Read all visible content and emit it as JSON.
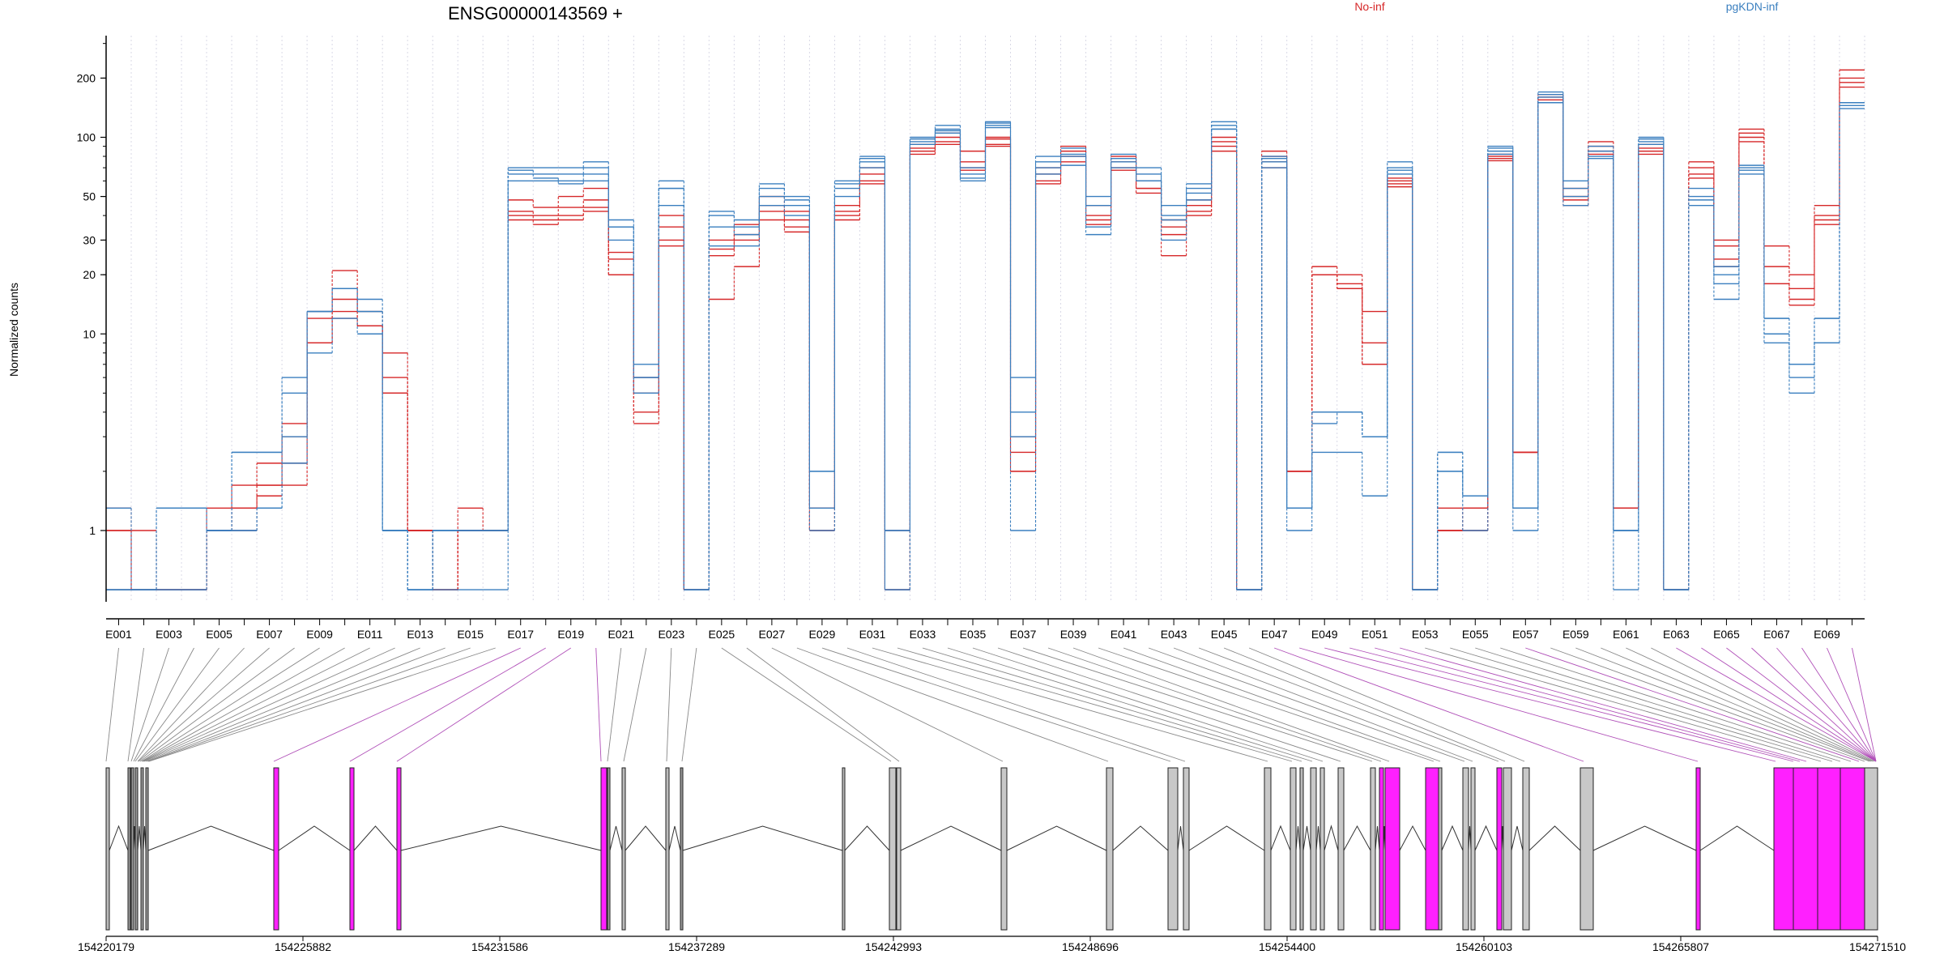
{
  "chart_data": {
    "type": "line",
    "title": "ENSG00000143569 +",
    "ylabel": "Normalized counts",
    "yscale": "log",
    "ylim": [
      0.45,
      300
    ],
    "yticks": [
      1,
      10,
      20,
      30,
      50,
      100,
      200
    ],
    "grid": "vertical",
    "legend": [
      {
        "name": "No-inf",
        "color": "#d62728"
      },
      {
        "name": "pgKDN-inf",
        "color": "#3a7fbf"
      }
    ],
    "exons": [
      "E001",
      "E002",
      "E003",
      "E004",
      "E005",
      "E006",
      "E007",
      "E008",
      "E009",
      "E010",
      "E011",
      "E012",
      "E013",
      "E014",
      "E015",
      "E016",
      "E017",
      "E018",
      "E019",
      "E020",
      "E021",
      "E022",
      "E023",
      "E024",
      "E025",
      "E026",
      "E027",
      "E028",
      "E029",
      "E030",
      "E031",
      "E032",
      "E033",
      "E034",
      "E035",
      "E036",
      "E037",
      "E038",
      "E039",
      "E040",
      "E041",
      "E042",
      "E043",
      "E044",
      "E045",
      "E046",
      "E047",
      "E048",
      "E049",
      "E050",
      "E051",
      "E052",
      "E053",
      "E054",
      "E055",
      "E056",
      "E057",
      "E058",
      "E059",
      "E060",
      "E061",
      "E062",
      "E063",
      "E064",
      "E065",
      "E066",
      "E067",
      "E068",
      "E069",
      "E070"
    ],
    "exon_tick_labels": [
      "E001",
      "E003",
      "E005",
      "E007",
      "E009",
      "E011",
      "E013",
      "E015",
      "E017",
      "E019",
      "E021",
      "E023",
      "E025",
      "E027",
      "E029",
      "E031",
      "E033",
      "E035",
      "E037",
      "E039",
      "E041",
      "E043",
      "E045",
      "E047",
      "E049",
      "E051",
      "E053",
      "E055",
      "E057",
      "E059",
      "E061",
      "E063",
      "E065",
      "E067",
      "E069"
    ],
    "series": [
      {
        "name": "No-inf",
        "color": "#d62728",
        "values": [
          1.3,
          1.0,
          0.5,
          0.5,
          1.0,
          1.3,
          1.7,
          1.7,
          9,
          13,
          13,
          6,
          1,
          0.5,
          1.3,
          1,
          48,
          44,
          50,
          55,
          26,
          6,
          40,
          0.5,
          30,
          36,
          50,
          42,
          1.3,
          45,
          70,
          1,
          92,
          105,
          85,
          100,
          3,
          70,
          90,
          45,
          80,
          60,
          38,
          48,
          100,
          0.5,
          85,
          2,
          22,
          20,
          13,
          62,
          0.5,
          1.3,
          1.3,
          82,
          2.5,
          165,
          55,
          95,
          1.3,
          92,
          0.5,
          75,
          30,
          110,
          28,
          20,
          45,
          220
        ]
      },
      {
        "name": "No-inf",
        "color": "#d62728",
        "values": [
          1.0,
          0.5,
          0.5,
          0.5,
          1.0,
          1.0,
          1.5,
          2.2,
          9,
          12,
          11,
          8,
          1,
          0.5,
          1,
          1,
          42,
          40,
          44,
          48,
          24,
          5,
          35,
          0.5,
          27,
          32,
          45,
          38,
          1.3,
          42,
          65,
          0.5,
          88,
          100,
          75,
          98,
          2.5,
          65,
          85,
          40,
          75,
          55,
          35,
          45,
          95,
          0.5,
          80,
          2,
          20,
          18,
          9,
          60,
          0.5,
          1,
          1.3,
          80,
          2.5,
          160,
          50,
          90,
          1.3,
          88,
          0.5,
          70,
          28,
          105,
          22,
          17,
          40,
          200
        ]
      },
      {
        "name": "No-inf",
        "color": "#d62728",
        "values": [
          1.0,
          0.5,
          0.5,
          0.5,
          1.3,
          1.7,
          2.2,
          3,
          13,
          15,
          11,
          5,
          1,
          0.5,
          1,
          1,
          40,
          38,
          40,
          44,
          20,
          4,
          30,
          0.5,
          25,
          30,
          42,
          35,
          1,
          40,
          60,
          0.5,
          85,
          95,
          70,
          92,
          2,
          60,
          80,
          38,
          70,
          55,
          32,
          42,
          90,
          0.5,
          75,
          2,
          20,
          17,
          7,
          58,
          0.5,
          1,
          1,
          78,
          2.5,
          155,
          48,
          85,
          1.3,
          85,
          0.5,
          65,
          24,
          100,
          18,
          15,
          38,
          190
        ]
      },
      {
        "name": "No-inf",
        "color": "#d62728",
        "values": [
          0.5,
          0.5,
          0.5,
          0.5,
          1.0,
          1.3,
          1.7,
          3.5,
          12,
          21,
          11,
          5,
          1,
          0.5,
          1,
          1,
          38,
          36,
          38,
          42,
          20,
          3.5,
          28,
          0.5,
          15,
          22,
          38,
          33,
          1,
          38,
          58,
          0.5,
          82,
          92,
          68,
          90,
          2,
          58,
          75,
          36,
          68,
          52,
          25,
          40,
          85,
          0.5,
          70,
          2,
          20,
          17,
          7,
          56,
          0.5,
          1,
          1,
          76,
          2.5,
          150,
          45,
          82,
          1.3,
          82,
          0.5,
          62,
          22,
          95,
          18,
          14,
          36,
          180
        ]
      },
      {
        "name": "pgKDN-inf",
        "color": "#3a7fbf",
        "values": [
          0.5,
          0.5,
          1.3,
          1.3,
          1.0,
          2.5,
          2.5,
          6,
          13,
          17,
          15,
          1,
          0.5,
          1,
          1,
          1,
          70,
          70,
          70,
          75,
          38,
          7,
          60,
          0.5,
          42,
          38,
          58,
          50,
          2,
          60,
          80,
          1,
          100,
          115,
          70,
          120,
          6,
          80,
          88,
          50,
          82,
          70,
          45,
          58,
          120,
          0.5,
          80,
          1.3,
          4,
          4,
          3,
          75,
          0.5,
          2.5,
          1.5,
          90,
          1.3,
          170,
          60,
          90,
          1,
          100,
          0.5,
          55,
          22,
          72,
          12,
          7,
          12,
          150
        ]
      },
      {
        "name": "pgKDN-inf",
        "color": "#3a7fbf",
        "values": [
          0.5,
          0.5,
          1.3,
          1.3,
          1.0,
          2.5,
          2.5,
          5,
          13,
          17,
          13,
          1,
          0.5,
          1,
          1,
          1,
          68,
          65,
          65,
          70,
          35,
          6,
          55,
          0.5,
          40,
          35,
          55,
          48,
          2,
          58,
          78,
          1,
          98,
          110,
          65,
          118,
          4,
          75,
          82,
          45,
          78,
          65,
          40,
          55,
          115,
          0.5,
          78,
          1.3,
          4,
          4,
          3,
          70,
          0.5,
          2.5,
          1.5,
          88,
          1.3,
          165,
          55,
          85,
          1,
          98,
          0.5,
          50,
          20,
          70,
          12,
          7,
          12,
          150
        ]
      },
      {
        "name": "pgKDN-inf",
        "color": "#3a7fbf",
        "values": [
          1.3,
          0.5,
          0.5,
          0.5,
          1.0,
          1.0,
          1.3,
          3,
          13,
          17,
          13,
          1,
          0.5,
          1,
          1,
          1,
          65,
          62,
          60,
          65,
          35,
          6,
          55,
          0.5,
          35,
          32,
          50,
          45,
          1.3,
          55,
          75,
          0.5,
          95,
          108,
          62,
          115,
          3,
          70,
          80,
          35,
          75,
          60,
          38,
          52,
          110,
          0.5,
          75,
          1.3,
          3.5,
          4,
          3,
          68,
          0.5,
          2,
          1.5,
          85,
          1.3,
          160,
          50,
          80,
          1,
          95,
          0.5,
          48,
          18,
          68,
          10,
          6,
          9,
          145
        ]
      },
      {
        "name": "pgKDN-inf",
        "color": "#3a7fbf",
        "values": [
          0.5,
          0.5,
          0.5,
          0.5,
          1.0,
          1.0,
          1.3,
          2.2,
          8,
          12,
          10,
          1,
          0.5,
          0.5,
          0.5,
          0.5,
          60,
          60,
          58,
          60,
          30,
          5,
          45,
          0.5,
          28,
          28,
          45,
          40,
          1,
          50,
          70,
          0.5,
          92,
          105,
          60,
          112,
          1,
          65,
          72,
          32,
          70,
          60,
          30,
          48,
          110,
          0.5,
          70,
          1,
          2.5,
          2.5,
          1.5,
          65,
          0.5,
          2,
          1,
          82,
          1,
          150,
          45,
          78,
          0.5,
          92,
          0.5,
          45,
          15,
          65,
          9,
          5,
          9,
          140
        ]
      }
    ],
    "gene_axis": {
      "tick_labels": [
        "154220179",
        "154225882",
        "154231586",
        "154237289",
        "154242993",
        "154248696",
        "154254400",
        "154260103",
        "154265807",
        "154271510"
      ]
    }
  }
}
